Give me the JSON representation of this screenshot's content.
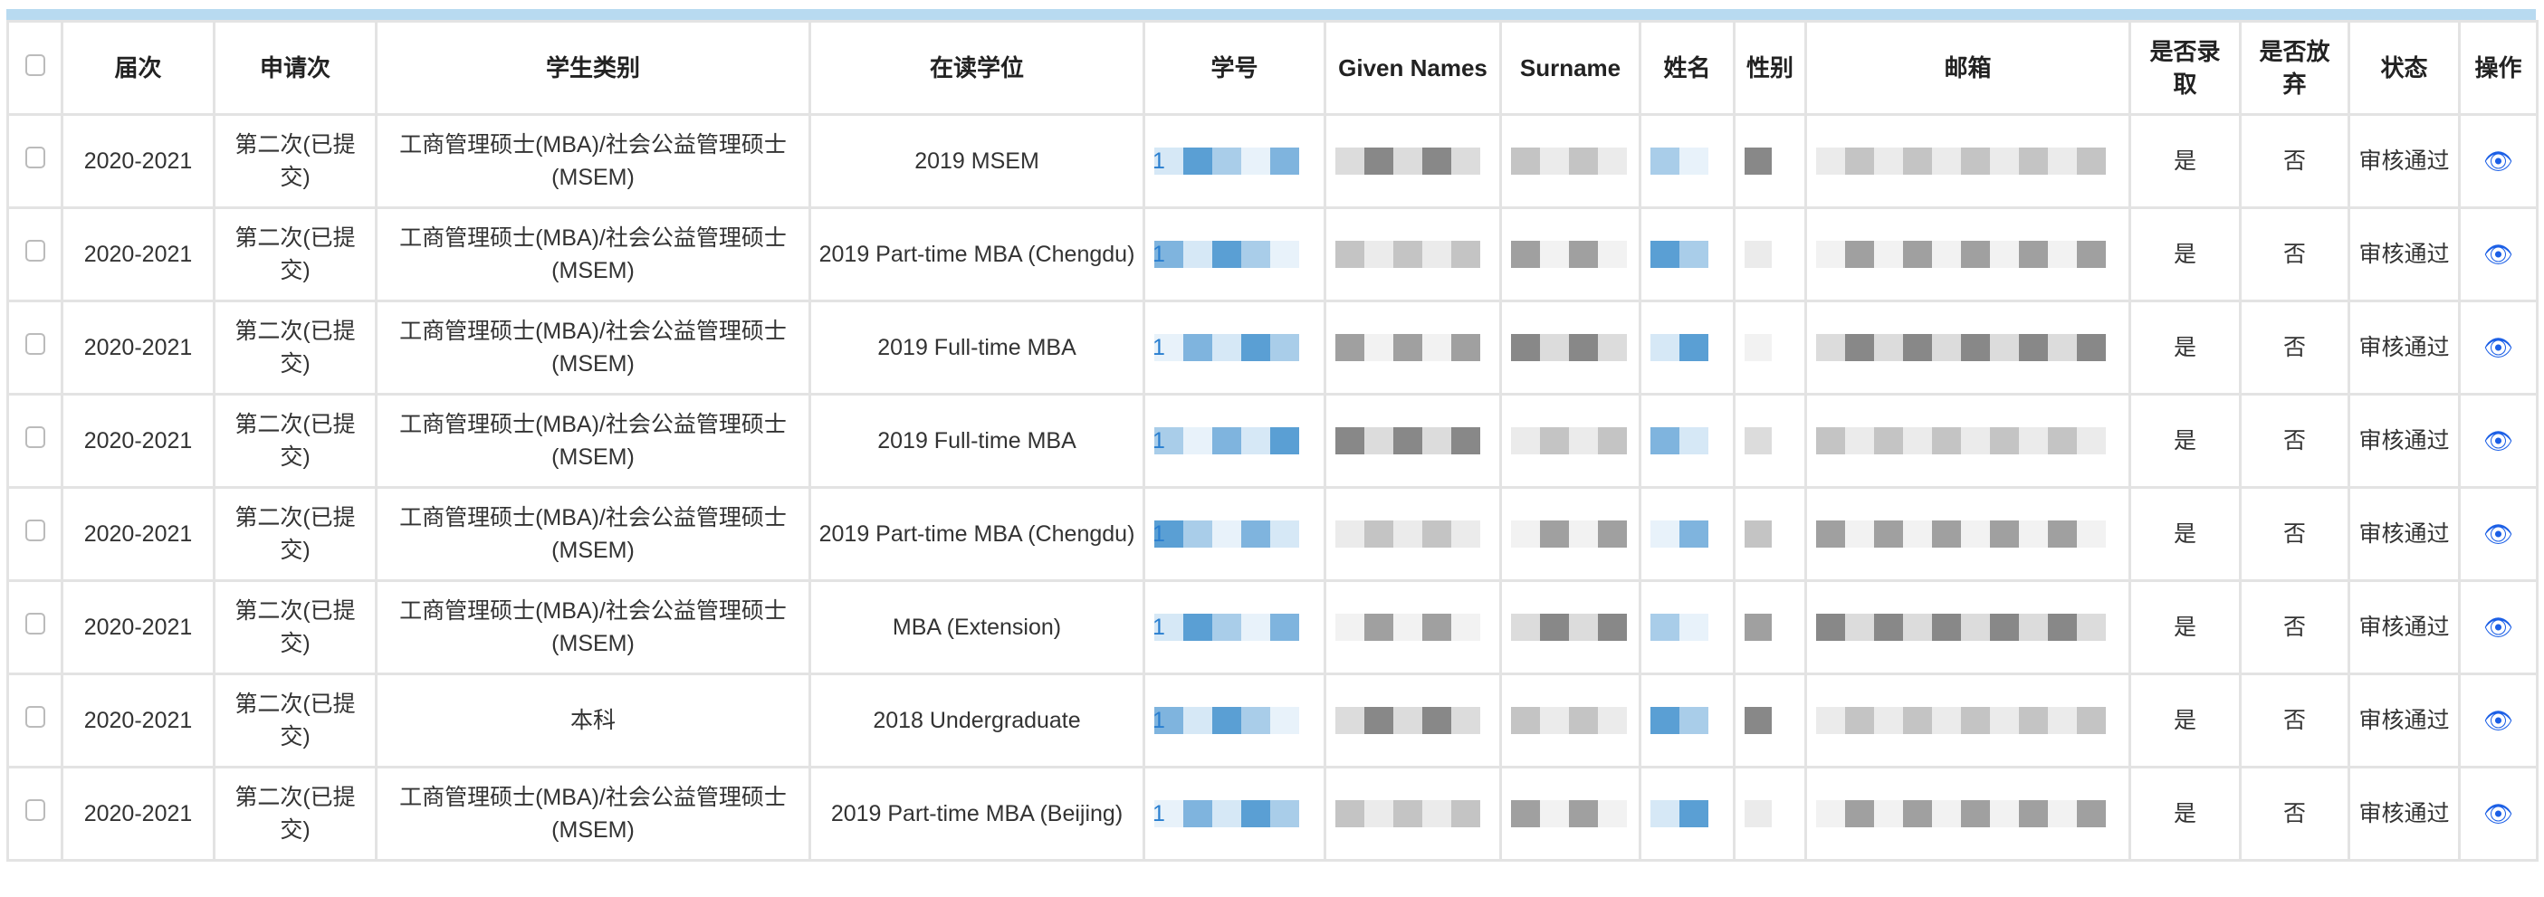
{
  "table": {
    "headers": [
      "届次",
      "申请次",
      "学生类别",
      "在读学位",
      "学号",
      "Given Names",
      "Surname",
      "姓名",
      "性别",
      "邮箱",
      "是否录取",
      "是否放弃",
      "状态",
      "操作"
    ],
    "rows": [
      {
        "year": "2020-2021",
        "round": "第二次(已提交)",
        "category": "工商管理硕士(MBA)/社会公益管理硕士(MSEM)",
        "degree": "2019 MSEM",
        "sid": "1",
        "admitted": "是",
        "abandoned": "否",
        "status": "审核通过"
      },
      {
        "year": "2020-2021",
        "round": "第二次(已提交)",
        "category": "工商管理硕士(MBA)/社会公益管理硕士(MSEM)",
        "degree": "2019 Part-time MBA (Chengdu)",
        "sid": "1",
        "admitted": "是",
        "abandoned": "否",
        "status": "审核通过"
      },
      {
        "year": "2020-2021",
        "round": "第二次(已提交)",
        "category": "工商管理硕士(MBA)/社会公益管理硕士(MSEM)",
        "degree": "2019 Full-time MBA",
        "sid": "1",
        "admitted": "是",
        "abandoned": "否",
        "status": "审核通过"
      },
      {
        "year": "2020-2021",
        "round": "第二次(已提交)",
        "category": "工商管理硕士(MBA)/社会公益管理硕士(MSEM)",
        "degree": "2019 Full-time MBA",
        "sid": "1",
        "admitted": "是",
        "abandoned": "否",
        "status": "审核通过"
      },
      {
        "year": "2020-2021",
        "round": "第二次(已提交)",
        "category": "工商管理硕士(MBA)/社会公益管理硕士(MSEM)",
        "degree": "2019 Part-time MBA (Chengdu)",
        "sid": "1",
        "admitted": "是",
        "abandoned": "否",
        "status": "审核通过"
      },
      {
        "year": "2020-2021",
        "round": "第二次(已提交)",
        "category": "工商管理硕士(MBA)/社会公益管理硕士(MSEM)",
        "degree": "MBA (Extension)",
        "sid": "1",
        "admitted": "是",
        "abandoned": "否",
        "status": "审核通过"
      },
      {
        "year": "2020-2021",
        "round": "第二次(已提交)",
        "category": "本科",
        "degree": "2018 Undergraduate",
        "sid": "1",
        "admitted": "是",
        "abandoned": "否",
        "status": "审核通过"
      },
      {
        "year": "2020-2021",
        "round": "第二次(已提交)",
        "category": "工商管理硕士(MBA)/社会公益管理硕士(MSEM)",
        "degree": "2019 Part-time MBA (Beijing)",
        "sid": "1",
        "admitted": "是",
        "abandoned": "否",
        "status": "审核通过"
      }
    ],
    "action_icon": "eye-icon",
    "colors": {
      "header_bar": "#b8daf0",
      "link": "#2a7fd0",
      "action": "#1b5fe6"
    }
  }
}
